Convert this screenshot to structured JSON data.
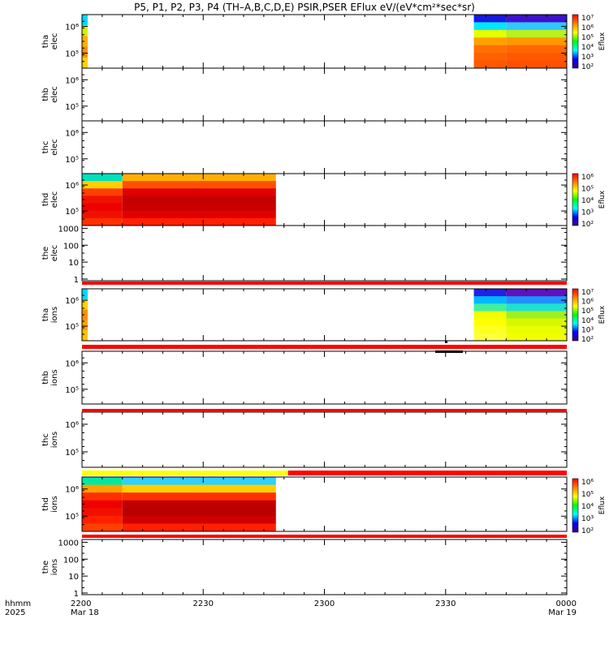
{
  "title_text": "P5, P1, P2, P3, P4 (TH–A,B,C,D,E) PSIR,PSER EFlux eV/(eV*cm²*sec*sr)",
  "chart_data": {
    "type": "heatmap",
    "title": "P5, P1, P2, P3, P4 (TH–A,B,C,D,E) PSIR,PSER EFlux eV/(eV*cm²*sec*sr)",
    "x_axis": {
      "time_label": "hhmm",
      "year_label": "2025",
      "range_minutes": [
        0,
        120
      ],
      "ticks": [
        {
          "minute": 0,
          "label": "2200",
          "date": "Mar 18"
        },
        {
          "minute": 30,
          "label": "2230",
          "date": ""
        },
        {
          "minute": 60,
          "label": "2300",
          "date": ""
        },
        {
          "minute": 90,
          "label": "2330",
          "date": ""
        },
        {
          "minute": 120,
          "label": "0000",
          "date": "Mar 19"
        }
      ]
    },
    "panels": [
      {
        "ylabel": [
          "tha",
          "elec"
        ],
        "scale": "log",
        "yticks": [
          "10⁶",
          "10⁵"
        ],
        "spectrogram_segments": [
          {
            "t0": 0,
            "t1": 1.4,
            "column": [
              "#00d8ff",
              "#d4f000",
              "#ffb000",
              "#ff9000",
              "#ffd000"
            ]
          },
          {
            "t0": 97,
            "t1": 105,
            "column": [
              "#1818e0",
              "#00e8ff",
              "#e8ff00",
              "#ffa000",
              "#ff7000",
              "#ff6000",
              "#ff5800"
            ]
          },
          {
            "t0": 105,
            "t1": 120,
            "column": [
              "#4010d0",
              "#30c8ff",
              "#b8f020",
              "#ff9800",
              "#ff6800",
              "#ff5800",
              "#ff5000"
            ]
          }
        ],
        "colorbar": {
          "ticks": [
            "10⁷",
            "10⁶",
            "10⁵",
            "10⁴",
            "10³",
            "10²"
          ],
          "label": "Eflux"
        }
      },
      {
        "ylabel": [
          "thb",
          "elec"
        ],
        "scale": "log",
        "yticks": [
          "10⁶",
          "10⁵"
        ],
        "spectrogram_segments": []
      },
      {
        "ylabel": [
          "thc",
          "elec"
        ],
        "scale": "log",
        "yticks": [
          "10⁶",
          "10⁵"
        ],
        "spectrogram_segments": []
      },
      {
        "ylabel": [
          "thd",
          "elec"
        ],
        "scale": "log",
        "yticks": [
          "10⁶",
          "10⁵"
        ],
        "spectrogram_segments": [
          {
            "t0": 0,
            "t1": 10,
            "column": [
              "#00e0c0",
              "#ffd000",
              "#ff4000",
              "#f01000",
              "#ee0000",
              "#f01000",
              "#ff3000"
            ]
          },
          {
            "t0": 10,
            "t1": 48,
            "column": [
              "#ffb000",
              "#ff5000",
              "#e00000",
              "#c40000",
              "#c80000",
              "#e00000",
              "#ff2000"
            ]
          }
        ],
        "colorbar": {
          "ticks": [
            "10⁶",
            "10⁵",
            "10⁴",
            "10³",
            "10²"
          ],
          "label": "Eflux"
        }
      },
      {
        "ylabel": [
          "the",
          "elec"
        ],
        "scale": "log",
        "yticks": [
          "1000",
          "100",
          "10",
          "1"
        ],
        "spectrogram_segments": []
      },
      {
        "ylabel": [
          "tha",
          "ions"
        ],
        "scale": "log",
        "yticks": [
          "10⁶",
          "10⁵"
        ],
        "spectrogram_segments": [
          {
            "t0": 0,
            "t1": 1.4,
            "column": [
              "#00d8ff",
              "#ffd000",
              "#ff9000",
              "#ffa000",
              "#ffc000"
            ]
          },
          {
            "t0": 97,
            "t1": 105,
            "column": [
              "#2020e8",
              "#00b8ff",
              "#40f0a0",
              "#f0ff00",
              "#ffff00",
              "#ffff20",
              "#ffff40"
            ]
          },
          {
            "t0": 105,
            "t1": 120,
            "column": [
              "#6010c0",
              "#2090ff",
              "#20e0d0",
              "#a0f020",
              "#d8f800",
              "#e8ff00",
              "#f0ff00"
            ]
          }
        ],
        "colorbar": {
          "ticks": [
            "10⁷",
            "10⁶",
            "10⁵",
            "10⁴",
            "10³",
            "10²"
          ],
          "label": "Eflux"
        }
      },
      {
        "ylabel": [
          "thb",
          "ions"
        ],
        "scale": "log",
        "yticks": [
          "10⁶",
          "10⁵"
        ],
        "spectrogram_segments": []
      },
      {
        "ylabel": [
          "thc",
          "ions"
        ],
        "scale": "log",
        "yticks": [
          "10⁶",
          "10⁵"
        ],
        "spectrogram_segments": []
      },
      {
        "ylabel": [
          "thd",
          "ions"
        ],
        "scale": "log",
        "yticks": [
          "10⁶",
          "10⁵"
        ],
        "spectrogram_segments": [
          {
            "t0": 0,
            "t1": 10,
            "column": [
              "#00e8a0",
              "#ffa000",
              "#ff3000",
              "#ee0000",
              "#f01000",
              "#ff2000",
              "#ff4000"
            ]
          },
          {
            "t0": 10,
            "t1": 48,
            "column": [
              "#30d0ff",
              "#ffd000",
              "#ff3000",
              "#c00000",
              "#b80000",
              "#d00000",
              "#ff2000"
            ]
          }
        ],
        "colorbar": {
          "ticks": [
            "10⁶",
            "10⁵",
            "10⁴",
            "10³",
            "10²"
          ],
          "label": "Eflux"
        }
      },
      {
        "ylabel": [
          "the",
          "ions"
        ],
        "scale": "log",
        "yticks": [
          "1000",
          "100",
          "10",
          "1"
        ],
        "spectrogram_segments": []
      }
    ],
    "mode_bars": [
      {
        "after_panel": 4,
        "segments": [
          {
            "t0": 0,
            "t1": 120,
            "color": "#ff0000"
          }
        ]
      },
      {
        "after_panel": 5,
        "segments": [
          {
            "t0": 0,
            "t1": 120,
            "color": "#ff0000"
          }
        ]
      },
      {
        "after_panel": 6,
        "segments": [
          {
            "t0": 0,
            "t1": 120,
            "color": "#ff0000"
          }
        ]
      },
      {
        "after_panel": 7,
        "segments": [
          {
            "t0": 0,
            "t1": 51,
            "color": "#ffff00"
          },
          {
            "t0": 51,
            "t1": 120,
            "color": "#ff0000"
          }
        ]
      },
      {
        "after_panel": 8,
        "segments": [
          {
            "t0": 0,
            "t1": 120,
            "color": "#ff0000"
          }
        ]
      }
    ],
    "colors": {
      "background": "#ffffff",
      "axis": "#000000"
    }
  }
}
